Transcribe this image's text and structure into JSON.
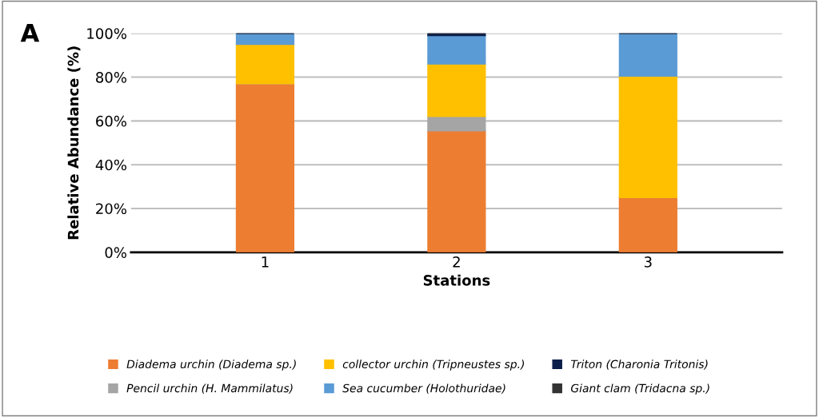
{
  "chart_data": {
    "type": "bar",
    "stacked": true,
    "xlabel": "Stations",
    "ylabel": "Relative Abundance (%)",
    "annotations": [
      "A"
    ],
    "categories": [
      "1",
      "2",
      "3"
    ],
    "series": [
      {
        "name": "Diadema urchin (Diadema sp.)",
        "color": "#ed7d31",
        "values": [
          77,
          55.5,
          25
        ]
      },
      {
        "name": "Pencil urchin (H. Mammilatus)",
        "color": "#a5a5a5",
        "values": [
          0,
          6.5,
          0
        ]
      },
      {
        "name": "collector urchin (Tripneustes sp.)",
        "color": "#ffc000",
        "values": [
          18,
          24,
          55.5
        ]
      },
      {
        "name": "Sea cucumber (Holothuridae)",
        "color": "#5b9bd5",
        "values": [
          5,
          13,
          19.5
        ]
      },
      {
        "name": "Triton (Charonia Tritonis)",
        "color": "#0c1f4a",
        "values": [
          0,
          1,
          0
        ]
      },
      {
        "name": "Giant clam (Tridacna sp.)",
        "color": "#333333",
        "values": [
          0,
          0,
          0
        ]
      }
    ],
    "ylim": [
      0,
      100
    ],
    "yticks": [
      {
        "value": 0,
        "label": "0%"
      },
      {
        "value": 20,
        "label": "20%"
      },
      {
        "value": 40,
        "label": "40%"
      },
      {
        "value": 60,
        "label": "60%"
      },
      {
        "value": 80,
        "label": "80%"
      },
      {
        "value": 100,
        "label": "100%"
      }
    ],
    "grid": "y",
    "legend": "bottom"
  }
}
